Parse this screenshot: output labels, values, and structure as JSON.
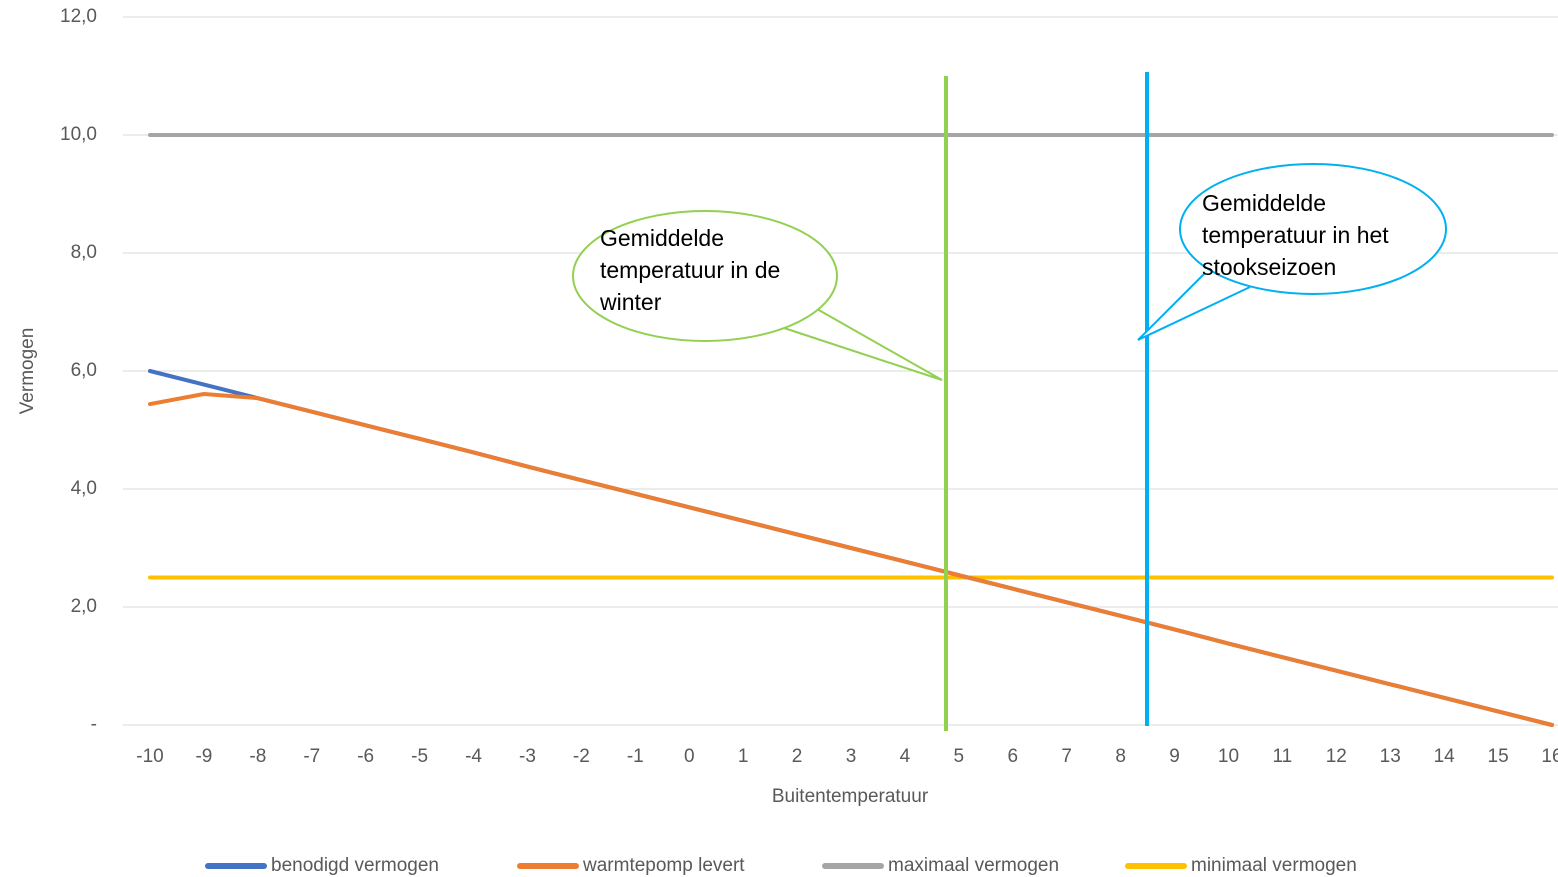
{
  "chart_data": {
    "type": "line",
    "x_label": "Buitentemperatuur",
    "y_label": "Vermogen",
    "categories": [
      "-10",
      "-9",
      "-8",
      "-7",
      "-6",
      "-5",
      "-4",
      "-3",
      "-2",
      "-1",
      "0",
      "1",
      "2",
      "3",
      "4",
      "5",
      "6",
      "7",
      "8",
      "9",
      "10",
      "11",
      "12",
      "13",
      "14",
      "15",
      "16"
    ],
    "series": [
      {
        "name": "benodigd vermogen",
        "color": "#4472c4",
        "values": [
          6.0,
          5.77,
          5.54,
          5.31,
          5.08,
          4.85,
          4.62,
          4.38,
          4.15,
          3.92,
          3.69,
          3.46,
          3.23,
          3.0,
          2.77,
          2.54,
          2.31,
          2.08,
          1.85,
          1.62,
          1.38,
          1.15,
          0.92,
          0.69,
          0.46,
          0.23,
          0.0
        ]
      },
      {
        "name": "warmtepomp levert",
        "color": "#ed7d31",
        "values": [
          5.44,
          5.61,
          5.54,
          5.31,
          5.08,
          4.85,
          4.62,
          4.38,
          4.15,
          3.92,
          3.69,
          3.46,
          3.23,
          3.0,
          2.77,
          2.54,
          2.31,
          2.08,
          1.85,
          1.62,
          1.38,
          1.15,
          0.92,
          0.69,
          0.46,
          0.23,
          0.0
        ]
      },
      {
        "name": "maximaal vermogen",
        "color": "#a5a5a5",
        "values": [
          10,
          10,
          10,
          10,
          10,
          10,
          10,
          10,
          10,
          10,
          10,
          10,
          10,
          10,
          10,
          10,
          10,
          10,
          10,
          10,
          10,
          10,
          10,
          10,
          10,
          10,
          10
        ]
      },
      {
        "name": "minimaal vermogen",
        "color": "#ffc000",
        "values": [
          2.5,
          2.5,
          2.5,
          2.5,
          2.5,
          2.5,
          2.5,
          2.5,
          2.5,
          2.5,
          2.5,
          2.5,
          2.5,
          2.5,
          2.5,
          2.5,
          2.5,
          2.5,
          2.5,
          2.5,
          2.5,
          2.5,
          2.5,
          2.5,
          2.5,
          2.5,
          2.5
        ]
      }
    ],
    "ylim": [
      0,
      12
    ],
    "yticks": [
      {
        "value": 0,
        "label": "-"
      },
      {
        "value": 2,
        "label": "2,0"
      },
      {
        "value": 4,
        "label": "4,0"
      },
      {
        "value": 6,
        "label": "6,0"
      },
      {
        "value": 8,
        "label": "8,0"
      },
      {
        "value": 10,
        "label": "10,0"
      },
      {
        "value": 12,
        "label": "12,0"
      }
    ],
    "grid": true,
    "legend": "bottom",
    "annotations": [
      {
        "lines": [
          "Gemiddelde",
          "temperatuur in de",
          "winter"
        ]
      },
      {
        "lines": [
          "Gemiddelde",
          "temperatuur in het",
          "stookseizoen"
        ]
      }
    ]
  }
}
